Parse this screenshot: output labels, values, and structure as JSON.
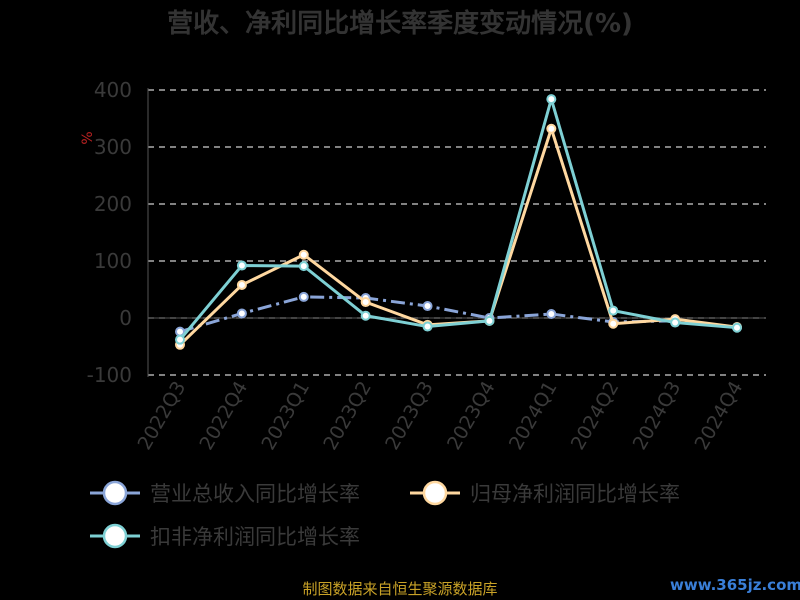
{
  "chart_data": {
    "type": "line",
    "title": "营收、净利同比增长率季度变动情况(%)",
    "ylabel": "%",
    "categories": [
      "2022Q3",
      "2022Q4",
      "2023Q1",
      "2023Q2",
      "2023Q3",
      "2023Q4",
      "2024Q1",
      "2024Q2",
      "2024Q3",
      "2024Q4"
    ],
    "ylim": [
      -100,
      400
    ],
    "yticks": [
      400,
      300,
      200,
      100,
      0,
      -100
    ],
    "grid": true,
    "legend_position": "bottom",
    "series": [
      {
        "name": "营业总收入同比增长率",
        "color": "#8aa5d8",
        "dashed": true,
        "values": [
          -24,
          8,
          37,
          35,
          21,
          0,
          7,
          -7,
          -5,
          -16
        ]
      },
      {
        "name": "归母净利润同比增长率",
        "color": "#ffd8a0",
        "dashed": false,
        "values": [
          -47,
          58,
          111,
          28,
          -12,
          -5,
          332,
          -10,
          -2,
          -16
        ]
      },
      {
        "name": "扣非净利润同比增长率",
        "color": "#7ed0d4",
        "dashed": false,
        "values": [
          -38,
          92,
          91,
          4,
          -15,
          -5,
          384,
          13,
          -8,
          -17
        ]
      }
    ]
  },
  "footer": "制图数据来自恒生聚源数据库",
  "watermark": "www.365jz.com"
}
